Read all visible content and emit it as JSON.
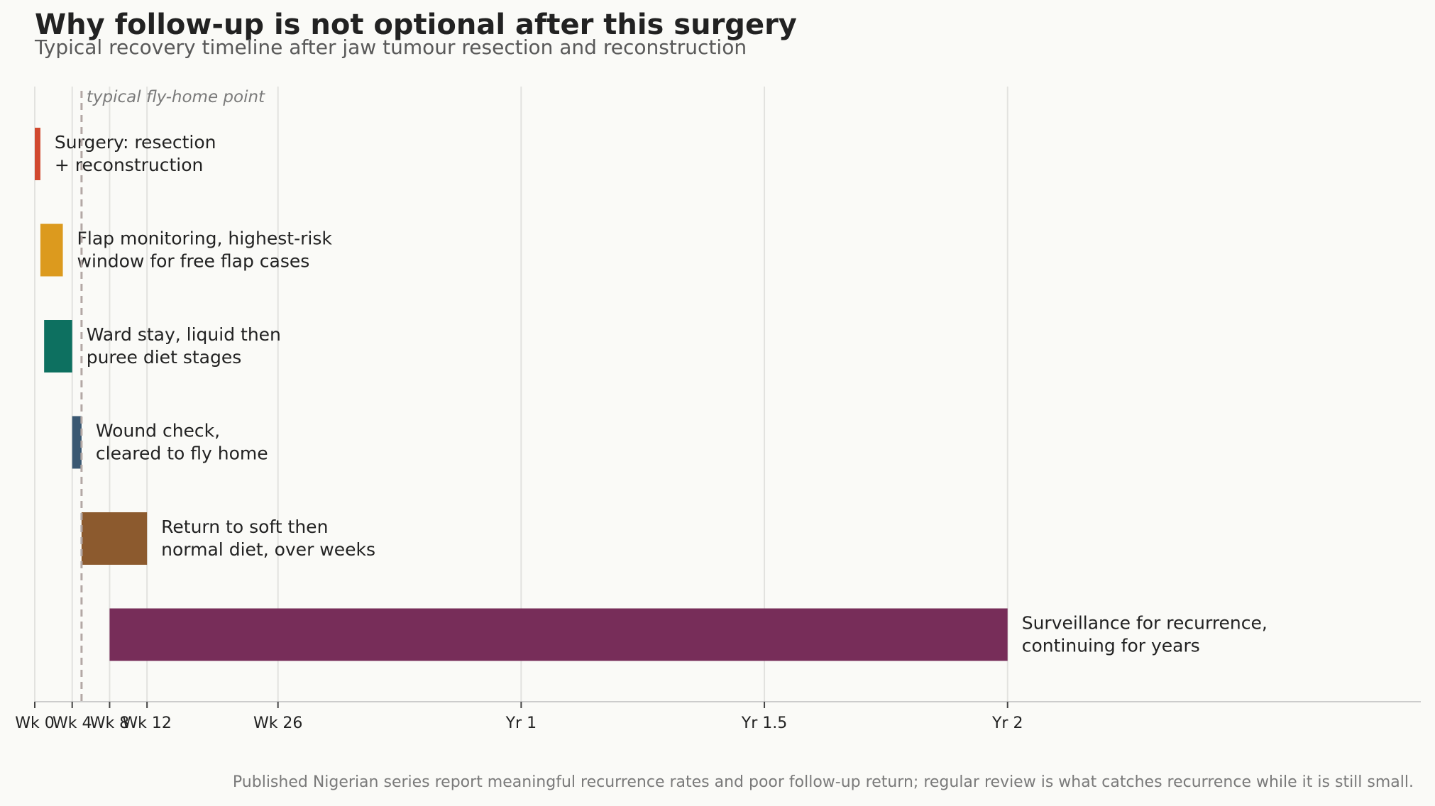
{
  "chart_data": {
    "type": "bar",
    "orientation": "horizontal-timeline",
    "title": "Why follow-up is not optional after this surgery",
    "subtitle": "Typical recovery timeline after jaw tumour resection and reconstruction",
    "footnote": "Published Nigerian series report meaningful recurrence rates and poor follow-up return; regular review is what catches recurrence while it is still small.",
    "x_unit": "weeks",
    "xlim": [
      0,
      142
    ],
    "grid": "vertical",
    "ticks": [
      {
        "value": 0,
        "label": "Wk 0"
      },
      {
        "value": 4,
        "label": "Wk 4"
      },
      {
        "value": 8,
        "label": "Wk 8"
      },
      {
        "value": 12,
        "label": "Wk 12"
      },
      {
        "value": 26,
        "label": "Wk 26"
      },
      {
        "value": 52,
        "label": "Yr 1"
      },
      {
        "value": 78,
        "label": "Yr 1.5"
      },
      {
        "value": 104,
        "label": "Yr 2"
      }
    ],
    "reference_line": {
      "value": 5,
      "label": "typical fly-home point"
    },
    "phases": [
      {
        "label_lines": [
          "Surgery: resection",
          "+ reconstruction"
        ],
        "start": 0,
        "end": 0.6,
        "color": "#d1492f"
      },
      {
        "label_lines": [
          "Flap monitoring, highest-risk",
          "window for free flap cases"
        ],
        "start": 0.6,
        "end": 3,
        "color": "#dc9a1e"
      },
      {
        "label_lines": [
          "Ward stay, liquid then",
          "puree diet stages"
        ],
        "start": 1,
        "end": 4,
        "color": "#0d7060"
      },
      {
        "label_lines": [
          "Wound check,",
          "cleared to fly home"
        ],
        "start": 4,
        "end": 5,
        "color": "#3a5872"
      },
      {
        "label_lines": [
          "Return to soft then",
          "normal diet, over weeks"
        ],
        "start": 5,
        "end": 12,
        "color": "#8c5a2e"
      },
      {
        "label_lines": [
          "Surveillance for recurrence,",
          "continuing for years"
        ],
        "start": 8,
        "end": 104,
        "color": "#772d59"
      }
    ]
  }
}
